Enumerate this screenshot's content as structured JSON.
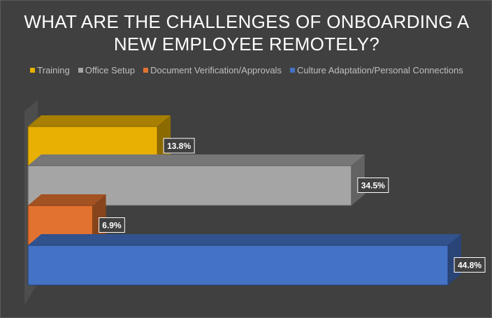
{
  "chart_data": {
    "type": "bar",
    "orientation": "horizontal",
    "style": "3d",
    "title_lines": [
      "WHAT ARE THE CHALLENGES OF ONBOARDING A",
      "NEW EMPLOYEE REMOTELY?"
    ],
    "legend_position": "top",
    "grid": false,
    "xlim": [
      0,
      50
    ],
    "categories": [
      "Training",
      "Office Setup",
      "Document Verification/Approvals",
      "Culture Adaptation/Personal Connections"
    ],
    "values": [
      13.8,
      34.5,
      6.9,
      44.8
    ],
    "data_labels": [
      "13.8%",
      "34.5%",
      "6.9%",
      "44.8%"
    ],
    "colors": [
      "#e8b003",
      "#a5a5a5",
      "#e2722f",
      "#4472c4"
    ]
  }
}
